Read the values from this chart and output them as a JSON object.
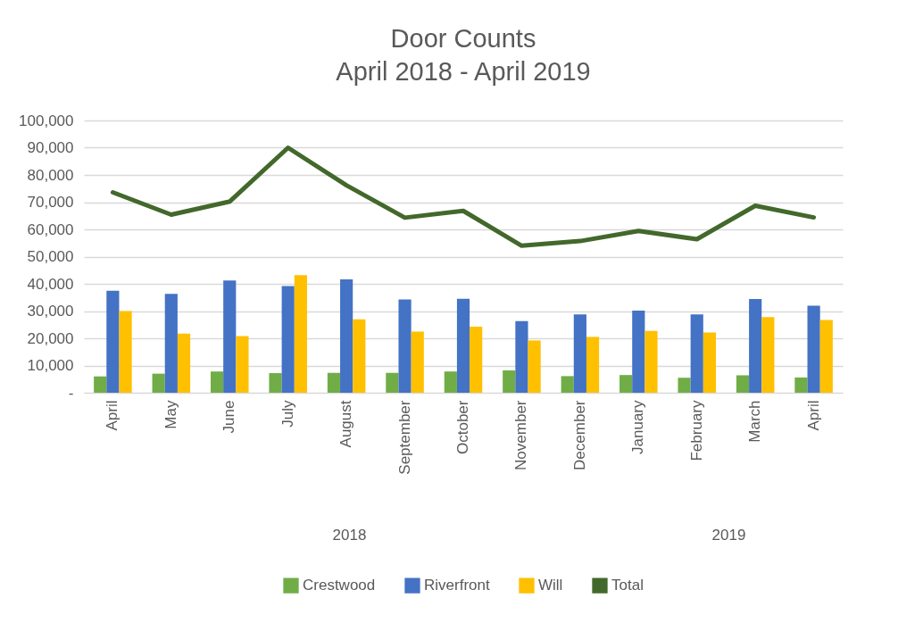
{
  "chart_data": {
    "type": "bar",
    "title": "Door Counts",
    "subtitle": "April 2018 - April 2019",
    "categories": [
      "April",
      "May",
      "June",
      "July",
      "August",
      "September",
      "October",
      "November",
      "December",
      "January",
      "February",
      "March",
      "April"
    ],
    "series": [
      {
        "name": "Crestwood",
        "color": "#70ad47",
        "values": [
          6000,
          7000,
          7800,
          7200,
          7300,
          7300,
          7800,
          8200,
          6100,
          6500,
          5500,
          6400,
          5600
        ]
      },
      {
        "name": "Riverfront",
        "color": "#4472c4",
        "values": [
          37500,
          36300,
          41200,
          39200,
          41600,
          34300,
          34500,
          26300,
          28800,
          30200,
          28800,
          34400,
          32000
        ]
      },
      {
        "name": "Will",
        "color": "#ffc000",
        "values": [
          30000,
          21700,
          20800,
          43200,
          27000,
          22500,
          24300,
          19200,
          20500,
          22700,
          22100,
          27800,
          26700
        ]
      },
      {
        "name": "Total",
        "type": "line",
        "color": "#43682b",
        "values": [
          73600,
          65400,
          70200,
          90000,
          76200,
          64300,
          66800,
          54000,
          55700,
          59400,
          56400,
          68700,
          64400
        ]
      }
    ],
    "ylim": [
      0,
      100000
    ],
    "yticks": [
      {
        "value": 0,
        "label": "-"
      },
      {
        "value": 10000,
        "label": "10,000"
      },
      {
        "value": 20000,
        "label": "20,000"
      },
      {
        "value": 30000,
        "label": "30,000"
      },
      {
        "value": 40000,
        "label": "40,000"
      },
      {
        "value": 50000,
        "label": "50,000"
      },
      {
        "value": 60000,
        "label": "60,000"
      },
      {
        "value": 70000,
        "label": "70,000"
      },
      {
        "value": 80000,
        "label": "80,000"
      },
      {
        "value": 90000,
        "label": "90,000"
      },
      {
        "value": 100000,
        "label": "100,000"
      }
    ],
    "annotations": [
      "2018",
      "2019"
    ],
    "grid": "y",
    "legend": "bottom"
  }
}
